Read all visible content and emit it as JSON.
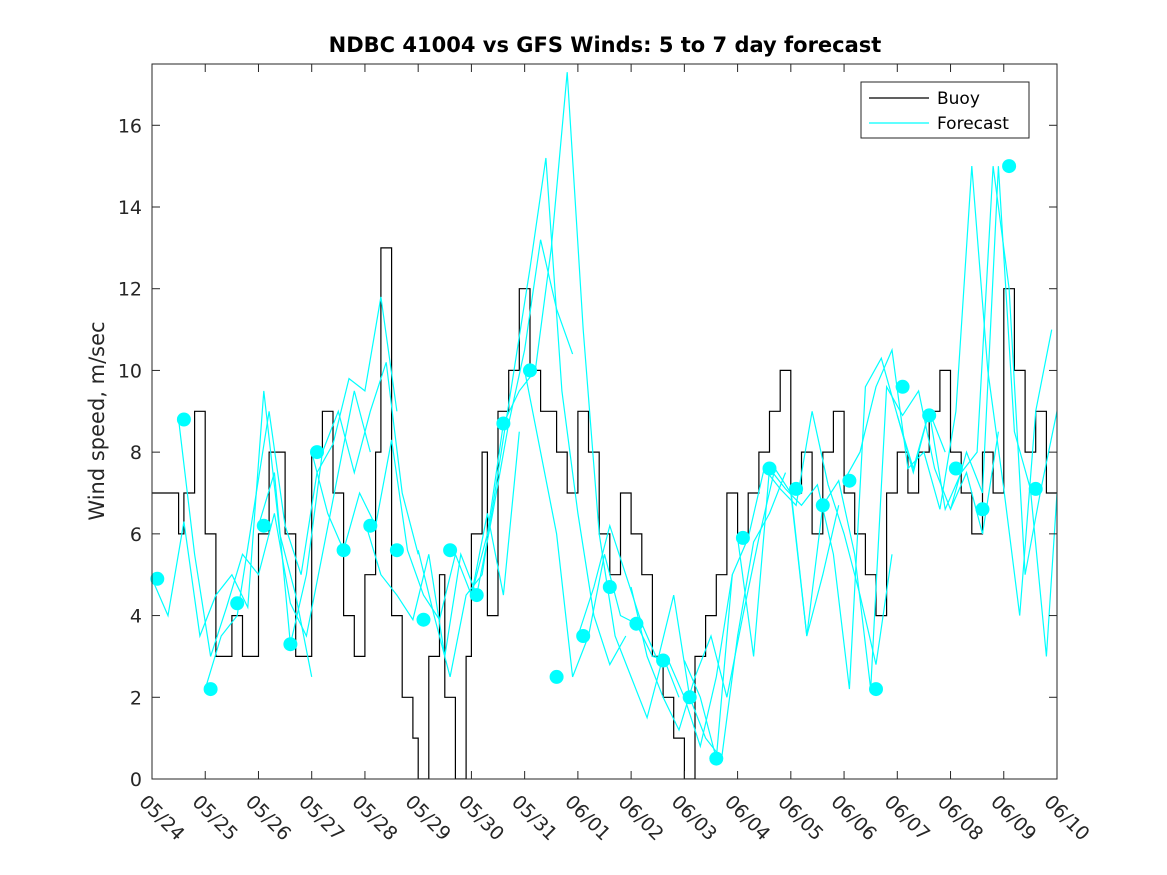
{
  "chart_data": {
    "type": "line",
    "title": "NDBC 41004 vs GFS Winds: 5 to 7 day forecast",
    "ylabel": "Wind speed, m/sec",
    "xlabel": "",
    "xlim": [
      0,
      17
    ],
    "ylim": [
      0,
      17.5
    ],
    "x_ticks": [
      0,
      1,
      2,
      3,
      4,
      5,
      6,
      7,
      8,
      9,
      10,
      11,
      12,
      13,
      14,
      15,
      16,
      17
    ],
    "x_tick_labels": [
      "05/24",
      "05/25",
      "05/26",
      "05/27",
      "05/28",
      "05/29",
      "05/30",
      "05/31",
      "06/01",
      "06/02",
      "06/03",
      "06/04",
      "06/05",
      "06/06",
      "06/07",
      "06/08",
      "06/09",
      "06/10"
    ],
    "x_units": "days since 05/24",
    "y_ticks": [
      0,
      2,
      4,
      6,
      8,
      10,
      12,
      14,
      16
    ],
    "grid": false,
    "legend_position": "top-right",
    "colors": {
      "buoy": "#000000",
      "forecast": "#00ffff",
      "axes": "#262626"
    },
    "legend": [
      {
        "label": "Buoy",
        "color": "#000000",
        "marker": "line"
      },
      {
        "label": "Forecast",
        "color": "#00ffff",
        "marker": "line"
      }
    ],
    "buoy": {
      "name": "Buoy",
      "x": [
        0,
        0.5,
        0.6,
        0.8,
        1.0,
        1.2,
        1.5,
        1.7,
        2.0,
        2.2,
        2.5,
        2.7,
        3.0,
        3.2,
        3.4,
        3.6,
        3.8,
        4.0,
        4.2,
        4.3,
        4.5,
        4.7,
        4.9,
        5.0,
        5.2,
        5.4,
        5.5,
        5.7,
        5.9,
        6.0,
        6.2,
        6.3,
        6.5,
        6.7,
        6.9,
        7.1,
        7.3,
        7.5,
        7.6,
        7.8,
        8.0,
        8.2,
        8.4,
        8.6,
        8.8,
        9.0,
        9.2,
        9.4,
        9.6,
        9.8,
        10.0,
        10.2,
        10.4,
        10.6,
        10.8,
        11.0,
        11.2,
        11.4,
        11.6,
        11.8,
        12.0,
        12.2,
        12.4,
        12.6,
        12.8,
        13.0,
        13.2,
        13.4,
        13.6,
        13.8,
        14.0,
        14.2,
        14.4,
        14.6,
        14.8,
        15.0,
        15.2,
        15.4,
        15.6,
        15.8,
        16.0,
        16.2,
        16.4,
        16.6,
        16.8,
        17.0
      ],
      "y": [
        7,
        6,
        7,
        9,
        6,
        3,
        4,
        3,
        6,
        8,
        6,
        3,
        8,
        9,
        7,
        4,
        3,
        5,
        8,
        13,
        4,
        2,
        1,
        0,
        3,
        5,
        2,
        0,
        3,
        6,
        8,
        4,
        9,
        10,
        12,
        10,
        9,
        9,
        8,
        7,
        9,
        8,
        6,
        5,
        7,
        6,
        5,
        3,
        2,
        1,
        0,
        3,
        4,
        5,
        7,
        6,
        7,
        8,
        9,
        10,
        7,
        8,
        6,
        8,
        9,
        7,
        6,
        5,
        4,
        7,
        8,
        7,
        8,
        9,
        10,
        8,
        7,
        6,
        8,
        7,
        12,
        10,
        8,
        9,
        7,
        7
      ]
    },
    "forecast": {
      "name": "Forecast",
      "runs": [
        {
          "x": [
            0,
            0.3,
            0.6,
            0.9,
            1.2,
            1.5,
            1.8,
            2.1,
            2.4,
            2.7,
            3.0
          ],
          "y": [
            4.9,
            4.0,
            6.3,
            3.5,
            4.5,
            5.0,
            4.2,
            9.5,
            6.0,
            4.5,
            2.5
          ]
        },
        {
          "x": [
            0.5,
            0.8,
            1.1,
            1.4,
            1.7,
            2.0,
            2.3,
            2.6,
            2.9,
            3.2,
            3.5,
            3.8,
            4.1
          ],
          "y": [
            8.8,
            5.5,
            3.0,
            4.2,
            5.5,
            5.0,
            6.5,
            4.3,
            3.5,
            5.5,
            7.5,
            9.5,
            8.0
          ]
        },
        {
          "x": [
            1.0,
            1.3,
            1.6,
            1.9,
            2.2,
            2.5,
            2.8,
            3.1,
            3.4,
            3.7,
            4.0,
            4.3,
            4.6
          ],
          "y": [
            2.2,
            3.5,
            4.0,
            6.5,
            9.0,
            6.2,
            5.0,
            7.5,
            8.2,
            9.8,
            9.5,
            11.8,
            9.0
          ]
        },
        {
          "x": [
            2.0,
            2.3,
            2.6,
            2.9,
            3.2,
            3.5,
            3.8,
            4.1,
            4.4,
            4.7,
            5.0
          ],
          "y": [
            6.2,
            7.5,
            3.3,
            5.0,
            8.0,
            9.0,
            7.5,
            9.0,
            10.2,
            7.0,
            5.5
          ]
        },
        {
          "x": [
            3.0,
            3.3,
            3.6,
            3.9,
            4.2,
            4.5,
            4.8,
            5.1,
            5.4,
            5.7,
            6.0,
            6.3,
            6.6,
            6.9
          ],
          "y": [
            8.0,
            6.5,
            5.6,
            7.0,
            6.2,
            8.3,
            5.6,
            4.5,
            3.9,
            5.5,
            4.5,
            6.5,
            4.5,
            8.5
          ]
        },
        {
          "x": [
            4.0,
            4.3,
            4.6,
            4.9,
            5.2,
            5.5,
            5.8,
            6.1,
            6.4,
            6.7,
            7.0,
            7.3,
            7.6,
            7.9
          ],
          "y": [
            6.3,
            5.0,
            4.5,
            3.9,
            5.5,
            3.0,
            5.5,
            4.5,
            6.5,
            8.7,
            10.5,
            13.2,
            11.5,
            10.4
          ]
        },
        {
          "x": [
            5.0,
            5.3,
            5.6,
            5.9,
            6.2,
            6.5,
            6.8,
            7.1,
            7.4,
            7.7,
            8.0,
            8.3,
            8.6,
            8.9
          ],
          "y": [
            5.6,
            4.0,
            2.5,
            4.5,
            5.0,
            7.5,
            10.0,
            12.5,
            15.2,
            9.5,
            6.5,
            4.0,
            2.8,
            3.5
          ]
        },
        {
          "x": [
            6.0,
            6.3,
            6.6,
            6.9,
            7.2,
            7.5,
            7.8,
            8.1,
            8.4,
            8.7,
            9.0,
            9.3,
            9.6,
            9.9
          ],
          "y": [
            4.5,
            6.0,
            8.7,
            9.5,
            10.0,
            13.0,
            17.3,
            11.0,
            6.0,
            3.5,
            2.5,
            1.5,
            3.0,
            2.0
          ]
        },
        {
          "x": [
            7.0,
            7.3,
            7.6,
            7.9,
            8.2,
            8.5,
            8.8,
            9.1,
            9.4,
            9.7,
            10.0,
            10.3,
            10.6,
            10.9
          ],
          "y": [
            10.0,
            8.0,
            6.0,
            2.5,
            3.5,
            5.5,
            4.0,
            3.8,
            3.0,
            2.9,
            2.0,
            0.8,
            2.5,
            5.0
          ]
        },
        {
          "x": [
            8.0,
            8.3,
            8.6,
            8.9,
            9.2,
            9.5,
            9.8,
            10.1,
            10.4,
            10.7,
            11.0,
            11.3,
            11.6,
            11.9
          ],
          "y": [
            3.5,
            4.7,
            6.2,
            5.0,
            3.8,
            2.9,
            4.5,
            2.0,
            1.0,
            0.5,
            3.5,
            5.8,
            6.5,
            7.5
          ]
        },
        {
          "x": [
            9.0,
            9.3,
            9.6,
            9.9,
            10.2,
            10.5,
            10.8,
            11.1,
            11.4,
            11.7,
            12.0,
            12.3,
            12.6,
            12.9
          ],
          "y": [
            4.7,
            3.0,
            2.0,
            1.2,
            2.5,
            3.5,
            2.0,
            4.0,
            5.9,
            7.6,
            7.0,
            3.5,
            5.0,
            6.7
          ]
        },
        {
          "x": [
            10.0,
            10.3,
            10.6,
            10.9,
            11.2,
            11.5,
            11.8,
            12.1,
            12.4,
            12.7,
            13.0,
            13.3,
            13.6,
            13.9
          ],
          "y": [
            2.9,
            2.0,
            0.5,
            5.0,
            5.9,
            7.6,
            7.1,
            6.7,
            9.0,
            7.2,
            6.0,
            4.5,
            2.8,
            5.5
          ]
        },
        {
          "x": [
            11.0,
            11.3,
            11.6,
            11.9,
            12.2,
            12.5,
            12.8,
            13.1,
            13.4,
            13.7,
            14.0,
            14.3,
            14.6,
            14.9
          ],
          "y": [
            5.9,
            3.0,
            7.6,
            7.1,
            6.7,
            7.2,
            5.5,
            2.2,
            9.6,
            10.3,
            8.9,
            7.5,
            9.0,
            8.0
          ]
        },
        {
          "x": [
            12.0,
            12.3,
            12.6,
            12.9,
            13.2,
            13.5,
            13.8,
            14.1,
            14.4,
            14.7,
            15.0,
            15.3,
            15.6,
            15.9
          ],
          "y": [
            7.1,
            3.5,
            6.7,
            7.3,
            5.5,
            2.2,
            9.6,
            8.9,
            9.5,
            7.6,
            6.6,
            7.5,
            6.0,
            8.5
          ]
        },
        {
          "x": [
            13.0,
            13.3,
            13.6,
            13.9,
            14.2,
            14.5,
            14.8,
            15.1,
            15.4,
            15.7,
            16.0,
            16.3,
            16.6,
            16.9
          ],
          "y": [
            7.3,
            8.0,
            9.6,
            10.5,
            7.6,
            8.0,
            6.6,
            9.0,
            15.0,
            10.0,
            7.1,
            4.0,
            9.0,
            11.0
          ]
        },
        {
          "x": [
            14.0,
            14.3,
            14.6,
            14.9,
            15.2,
            15.5,
            15.8,
            16.1,
            16.4,
            16.7,
            17.0
          ],
          "y": [
            8.9,
            7.6,
            9.0,
            6.6,
            7.5,
            8.0,
            15.0,
            12.0,
            5.0,
            7.1,
            9.0
          ]
        },
        {
          "x": [
            15.0,
            15.3,
            15.6,
            15.9,
            16.2,
            16.5,
            16.8,
            17.0
          ],
          "y": [
            6.6,
            8.0,
            7.0,
            15.0,
            8.5,
            7.1,
            3.0,
            7.0
          ]
        }
      ],
      "markers": {
        "x": [
          0.1,
          0.6,
          1.1,
          1.6,
          2.1,
          2.6,
          3.1,
          3.6,
          4.1,
          4.6,
          5.1,
          5.6,
          6.1,
          6.6,
          7.1,
          7.6,
          8.1,
          8.6,
          9.1,
          9.6,
          10.1,
          10.6,
          11.1,
          11.6,
          12.1,
          12.6,
          13.1,
          13.6,
          14.1,
          14.6,
          15.1,
          15.6,
          16.1,
          16.6
        ],
        "y": [
          4.9,
          8.8,
          2.2,
          4.3,
          6.2,
          3.3,
          8.0,
          5.6,
          6.2,
          5.6,
          3.9,
          5.6,
          4.5,
          8.7,
          10.0,
          2.5,
          3.5,
          4.7,
          3.8,
          2.9,
          2.0,
          0.5,
          5.9,
          7.6,
          7.1,
          6.7,
          7.3,
          2.2,
          9.6,
          8.9,
          7.6,
          6.6,
          15.0,
          7.1
        ]
      }
    }
  }
}
